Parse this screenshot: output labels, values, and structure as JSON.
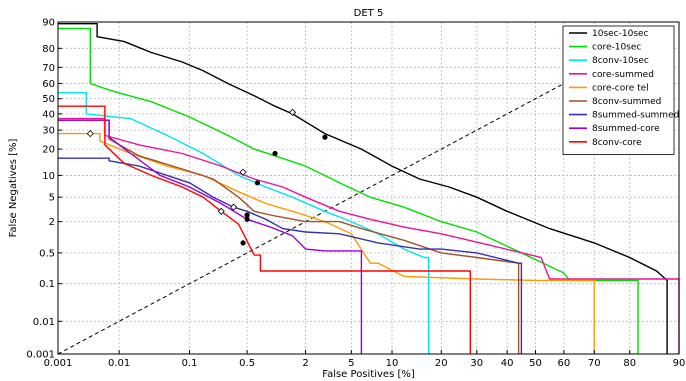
{
  "chart_data": {
    "type": "line",
    "title": "DET 5",
    "xlabel": "False Positives [%]",
    "ylabel": "False Negatives [%]",
    "scale": "normal-deviate (probit) on both axes",
    "xlim": [
      0.001,
      90
    ],
    "ylim": [
      0.001,
      90
    ],
    "x_ticks": [
      0.001,
      0.01,
      0.1,
      0.5,
      2,
      5,
      10,
      20,
      30,
      40,
      50,
      60,
      70,
      80,
      90
    ],
    "x_tick_labels": [
      "0.001",
      "0.01",
      "0.1",
      "0.5",
      "2",
      "5",
      "10",
      "20",
      "30",
      "40",
      "50",
      "60",
      "70",
      "80",
      "90"
    ],
    "y_ticks": [
      0.001,
      0.01,
      0.1,
      0.5,
      2,
      5,
      10,
      20,
      30,
      40,
      50,
      60,
      70,
      80,
      90
    ],
    "y_tick_labels": [
      "0.001",
      "0.01",
      "0.1",
      "0.5",
      "2",
      "5",
      "10",
      "20",
      "30",
      "40",
      "50",
      "60",
      "70",
      "80",
      "90"
    ],
    "grid": true,
    "legend_position": "top-right",
    "reference_line": "dashed diagonal (equal error rate line)",
    "series": [
      {
        "name": "10sec-10sec",
        "color": "#000000",
        "points": [
          [
            0.001,
            89.5
          ],
          [
            0.0045,
            89.5
          ],
          [
            0.0045,
            85
          ],
          [
            0.012,
            83
          ],
          [
            0.03,
            78
          ],
          [
            0.08,
            73
          ],
          [
            0.15,
            68
          ],
          [
            0.3,
            60
          ],
          [
            0.6,
            52
          ],
          [
            1.0,
            45
          ],
          [
            1.5,
            40
          ],
          [
            3,
            28
          ],
          [
            6,
            20
          ],
          [
            10,
            13
          ],
          [
            15,
            9
          ],
          [
            22,
            7
          ],
          [
            30,
            5
          ],
          [
            40,
            3
          ],
          [
            55,
            1.5
          ],
          [
            70,
            0.8
          ],
          [
            80,
            0.4
          ],
          [
            86,
            0.2
          ],
          [
            88,
            0.12
          ],
          [
            88,
            0.001
          ]
        ],
        "markers": {
          "eer_dot": [
            3,
            26
          ],
          "open_diamond": [
            1.5,
            41
          ]
        }
      },
      {
        "name": "core-10sec",
        "color": "#00dd00",
        "points": [
          [
            0.001,
            88
          ],
          [
            0.0035,
            88
          ],
          [
            0.0035,
            60
          ],
          [
            0.008,
            55
          ],
          [
            0.03,
            48
          ],
          [
            0.1,
            38
          ],
          [
            0.3,
            27
          ],
          [
            0.6,
            20
          ],
          [
            1.0,
            17
          ],
          [
            2,
            13
          ],
          [
            4,
            8
          ],
          [
            7,
            5
          ],
          [
            12,
            3.5
          ],
          [
            20,
            2
          ],
          [
            30,
            1.3
          ],
          [
            45,
            0.5
          ],
          [
            60,
            0.18
          ],
          [
            62,
            0.12
          ],
          [
            82,
            0.12
          ],
          [
            82,
            0.001
          ]
        ],
        "markers": {
          "eer_dot": [
            1.0,
            18
          ]
        }
      },
      {
        "name": "8conv-10sec",
        "color": "#00e5ee",
        "points": [
          [
            0.001,
            54
          ],
          [
            0.003,
            54
          ],
          [
            0.003,
            40
          ],
          [
            0.015,
            37
          ],
          [
            0.05,
            27
          ],
          [
            0.15,
            18
          ],
          [
            0.4,
            10
          ],
          [
            0.8,
            7
          ],
          [
            1.5,
            5
          ],
          [
            3,
            3
          ],
          [
            5,
            2
          ],
          [
            8,
            1.2
          ],
          [
            12,
            0.6
          ],
          [
            16,
            0.4
          ],
          [
            17,
            0.4
          ],
          [
            17,
            0.001
          ]
        ],
        "markers": {
          "eer_dot": [
            0.65,
            8
          ],
          "open_diamond": [
            0.45,
            11
          ]
        }
      },
      {
        "name": "core-summed",
        "color": "#ee1199",
        "points": [
          [
            0.001,
            37
          ],
          [
            0.006,
            37
          ],
          [
            0.006,
            27
          ],
          [
            0.02,
            22
          ],
          [
            0.08,
            18
          ],
          [
            0.25,
            13
          ],
          [
            0.6,
            9
          ],
          [
            1.2,
            7
          ],
          [
            2,
            5
          ],
          [
            4,
            3
          ],
          [
            7,
            2.2
          ],
          [
            12,
            1.6
          ],
          [
            20,
            1.2
          ],
          [
            35,
            0.7
          ],
          [
            52,
            0.4
          ],
          [
            55,
            0.13
          ],
          [
            90,
            0.13
          ],
          [
            90,
            0.001
          ]
        ],
        "markers": {}
      },
      {
        "name": "core-core tel",
        "color": "#ff9900",
        "points": [
          [
            0.001,
            28
          ],
          [
            0.005,
            28
          ],
          [
            0.005,
            24
          ],
          [
            0.015,
            18
          ],
          [
            0.05,
            13
          ],
          [
            0.15,
            10
          ],
          [
            0.4,
            6
          ],
          [
            0.8,
            4
          ],
          [
            1.5,
            3
          ],
          [
            3,
            2
          ],
          [
            5,
            1.2
          ],
          [
            7,
            0.3
          ],
          [
            8,
            0.3
          ],
          [
            12,
            0.15
          ],
          [
            30,
            0.13
          ],
          [
            50,
            0.12
          ],
          [
            70,
            0.12
          ],
          [
            70,
            0.001
          ]
        ],
        "markers": {
          "open_diamond": [
            0.0035,
            28
          ]
        }
      },
      {
        "name": "8conv-summed",
        "color": "#a0522d",
        "points": [
          [
            0.001,
            36
          ],
          [
            0.007,
            36
          ],
          [
            0.007,
            25
          ],
          [
            0.02,
            17
          ],
          [
            0.08,
            12
          ],
          [
            0.2,
            9
          ],
          [
            0.4,
            5
          ],
          [
            0.6,
            3
          ],
          [
            1.0,
            2.5
          ],
          [
            2,
            2
          ],
          [
            4,
            2
          ],
          [
            6,
            1.5
          ],
          [
            12,
            0.9
          ],
          [
            20,
            0.5
          ],
          [
            30,
            0.4
          ],
          [
            44,
            0.3
          ],
          [
            44,
            0.001
          ]
        ],
        "markers": {
          "eer_dot": [
            0.5,
            2.6
          ]
        }
      },
      {
        "name": "8summed-summed",
        "color": "#3333aa",
        "points": [
          [
            0.001,
            16
          ],
          [
            0.007,
            16
          ],
          [
            0.007,
            15
          ],
          [
            0.02,
            13
          ],
          [
            0.05,
            10
          ],
          [
            0.1,
            8
          ],
          [
            0.2,
            5
          ],
          [
            0.35,
            3.5
          ],
          [
            0.5,
            3
          ],
          [
            0.8,
            2.2
          ],
          [
            1.2,
            1.5
          ],
          [
            2,
            1.3
          ],
          [
            4,
            1.2
          ],
          [
            8,
            0.8
          ],
          [
            15,
            0.6
          ],
          [
            20,
            0.6
          ],
          [
            30,
            0.5
          ],
          [
            44,
            0.3
          ],
          [
            45,
            0.3
          ],
          [
            45,
            0.001
          ]
        ],
        "markers": {
          "eer_dot": [
            0.5,
            2.2
          ],
          "open_diamond": [
            0.35,
            3.5
          ]
        }
      },
      {
        "name": "8summed-core",
        "color": "#9900dd",
        "points": [
          [
            0.001,
            36
          ],
          [
            0.007,
            36
          ],
          [
            0.007,
            26
          ],
          [
            0.015,
            18
          ],
          [
            0.04,
            10
          ],
          [
            0.1,
            7
          ],
          [
            0.25,
            4
          ],
          [
            0.5,
            2.2
          ],
          [
            0.9,
            1.6
          ],
          [
            1.5,
            1.1
          ],
          [
            2,
            0.6
          ],
          [
            3,
            0.55
          ],
          [
            4,
            0.55
          ],
          [
            6,
            0.55
          ],
          [
            6,
            0.001
          ]
        ],
        "markers": {}
      },
      {
        "name": "8conv-core",
        "color": "#ff0000",
        "points": [
          [
            0.001,
            45
          ],
          [
            0.006,
            45
          ],
          [
            0.006,
            22
          ],
          [
            0.012,
            14
          ],
          [
            0.03,
            10
          ],
          [
            0.08,
            7
          ],
          [
            0.15,
            5
          ],
          [
            0.25,
            3
          ],
          [
            0.4,
            1.8
          ],
          [
            0.6,
            0.45
          ],
          [
            0.7,
            0.45
          ],
          [
            0.7,
            0.2
          ],
          [
            2,
            0.2
          ],
          [
            10,
            0.2
          ],
          [
            28,
            0.2
          ],
          [
            28,
            0.001
          ]
        ],
        "markers": {
          "eer_dot": [
            0.45,
            0.8
          ],
          "open_diamond": [
            0.25,
            3
          ]
        }
      }
    ]
  }
}
